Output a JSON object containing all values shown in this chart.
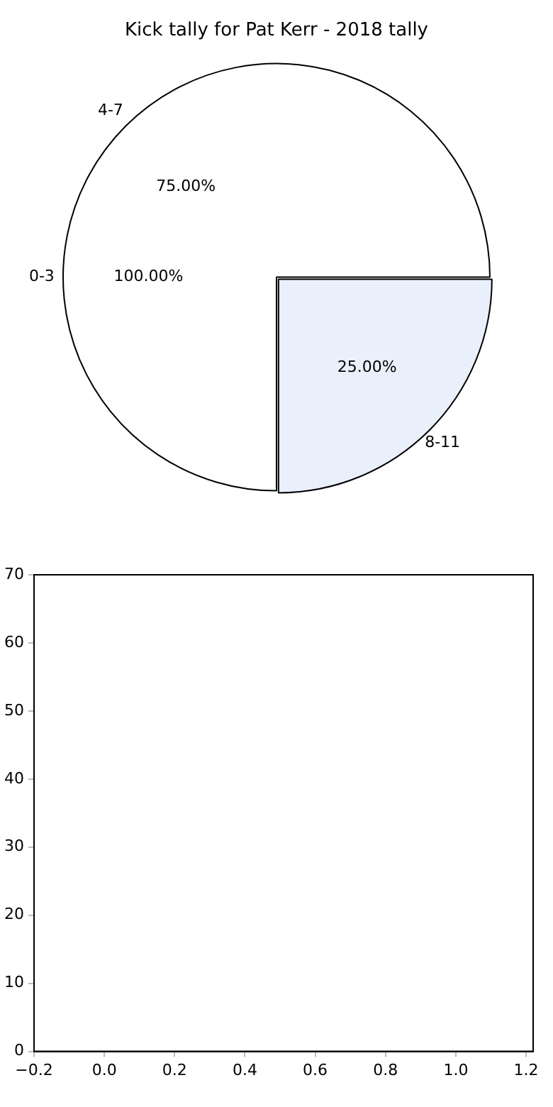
{
  "chart_data": [
    {
      "type": "pie",
      "title": "Kick tally for Pat Kerr - 2018 tally",
      "categories": [
        "4-7",
        "8-11"
      ],
      "values": [
        75,
        25
      ],
      "colors": [
        "#ffffff",
        "#eaf0fb"
      ],
      "value_labels": [
        "75.00%",
        "25.00%"
      ],
      "annotations": [
        "0-3",
        "100.00%"
      ],
      "legend": false
    },
    {
      "type": "scatter",
      "xlim": [
        -0.2,
        1.22
      ],
      "ylim": [
        0,
        70
      ],
      "xticks": [
        {
          "value": -0.2,
          "label": "−0.2"
        },
        {
          "value": 0,
          "label": "0.0"
        },
        {
          "value": 0.2,
          "label": "0.2"
        },
        {
          "value": 0.4,
          "label": "0.4"
        },
        {
          "value": 0.6,
          "label": "0.6"
        },
        {
          "value": 0.8,
          "label": "0.8"
        },
        {
          "value": 1,
          "label": "1.0"
        },
        {
          "value": 1.2,
          "label": "1.2"
        }
      ],
      "yticks": [
        0,
        10,
        20,
        30,
        40,
        50,
        60,
        70
      ],
      "grid": false,
      "legend": false
    }
  ]
}
